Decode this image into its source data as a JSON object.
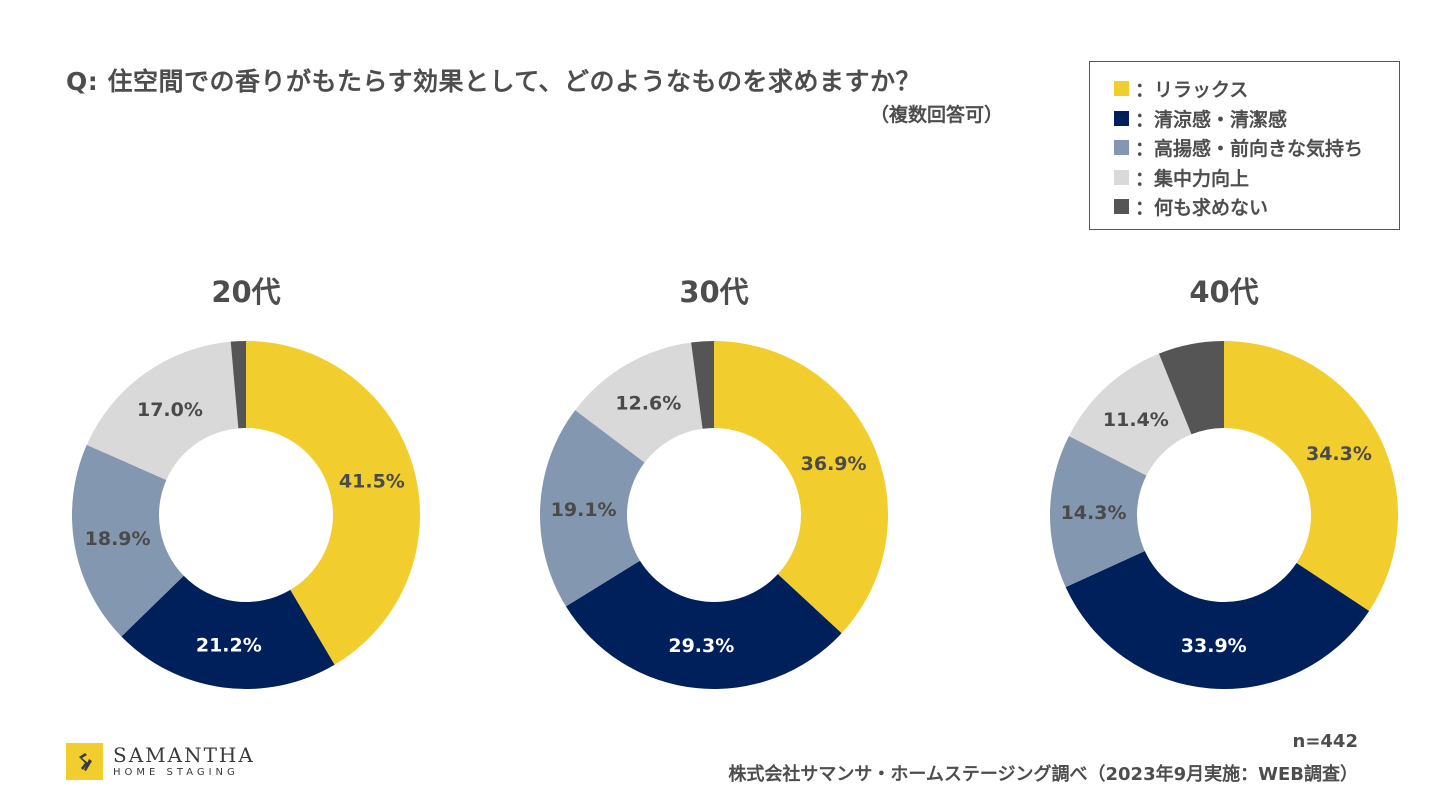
{
  "header": {
    "title": "Q: 住空間での香りがもたらす効果として、どのようなものを求めますか？",
    "subtitle": "（複数回答可）"
  },
  "legend": {
    "items": [
      {
        "label": "：リラックス",
        "color": "#f2cd2e"
      },
      {
        "label": "：清涼感・清潔感",
        "color": "#00205b"
      },
      {
        "label": "：高揚感・前向きな気持ち",
        "color": "#8497b0"
      },
      {
        "label": "：集中力向上",
        "color": "#d9d9d9"
      },
      {
        "label": "：何も求めない",
        "color": "#555555"
      }
    ]
  },
  "chart_data": [
    {
      "type": "pie",
      "title": "20代",
      "categories": [
        "リラックス",
        "清涼感・清潔感",
        "高揚感・前向きな気持ち",
        "集中力向上",
        "何も求めない"
      ],
      "values": [
        41.5,
        21.2,
        18.9,
        17.0,
        1.4
      ],
      "labels": [
        "41.5%",
        "21.2%",
        "18.9%",
        "17.0%",
        ""
      ],
      "hole": "donut",
      "legend": "top-right"
    },
    {
      "type": "pie",
      "title": "30代",
      "categories": [
        "リラックス",
        "清涼感・清潔感",
        "高揚感・前向きな気持ち",
        "集中力向上",
        "何も求めない"
      ],
      "values": [
        36.9,
        29.3,
        19.1,
        12.6,
        2.1
      ],
      "labels": [
        "36.9%",
        "29.3%",
        "19.1%",
        "12.6%",
        ""
      ],
      "hole": "donut",
      "legend": "top-right"
    },
    {
      "type": "pie",
      "title": "40代",
      "categories": [
        "リラックス",
        "清涼感・清潔感",
        "高揚感・前向きな気持ち",
        "集中力向上",
        "何も求めない"
      ],
      "values": [
        34.3,
        33.9,
        14.3,
        11.4,
        6.1
      ],
      "labels": [
        "34.3%",
        "33.9%",
        "14.3%",
        "11.4%",
        ""
      ],
      "hole": "donut",
      "legend": "top-right"
    }
  ],
  "slice_colors": [
    "#f2cd2e",
    "#00205b",
    "#8497b0",
    "#d9d9d9",
    "#555555"
  ],
  "label_colors": [
    "#4a4a4a",
    "#ffffff",
    "#4a4a4a",
    "#4a4a4a",
    "#ffffff"
  ],
  "footer": {
    "logo_name": "SAMANTHA",
    "logo_sub": "HOME STAGING",
    "sample_size": "n=442",
    "source": "株式会社サマンサ・ホームステージング調べ（2023年9月実施：WEB調査）"
  }
}
